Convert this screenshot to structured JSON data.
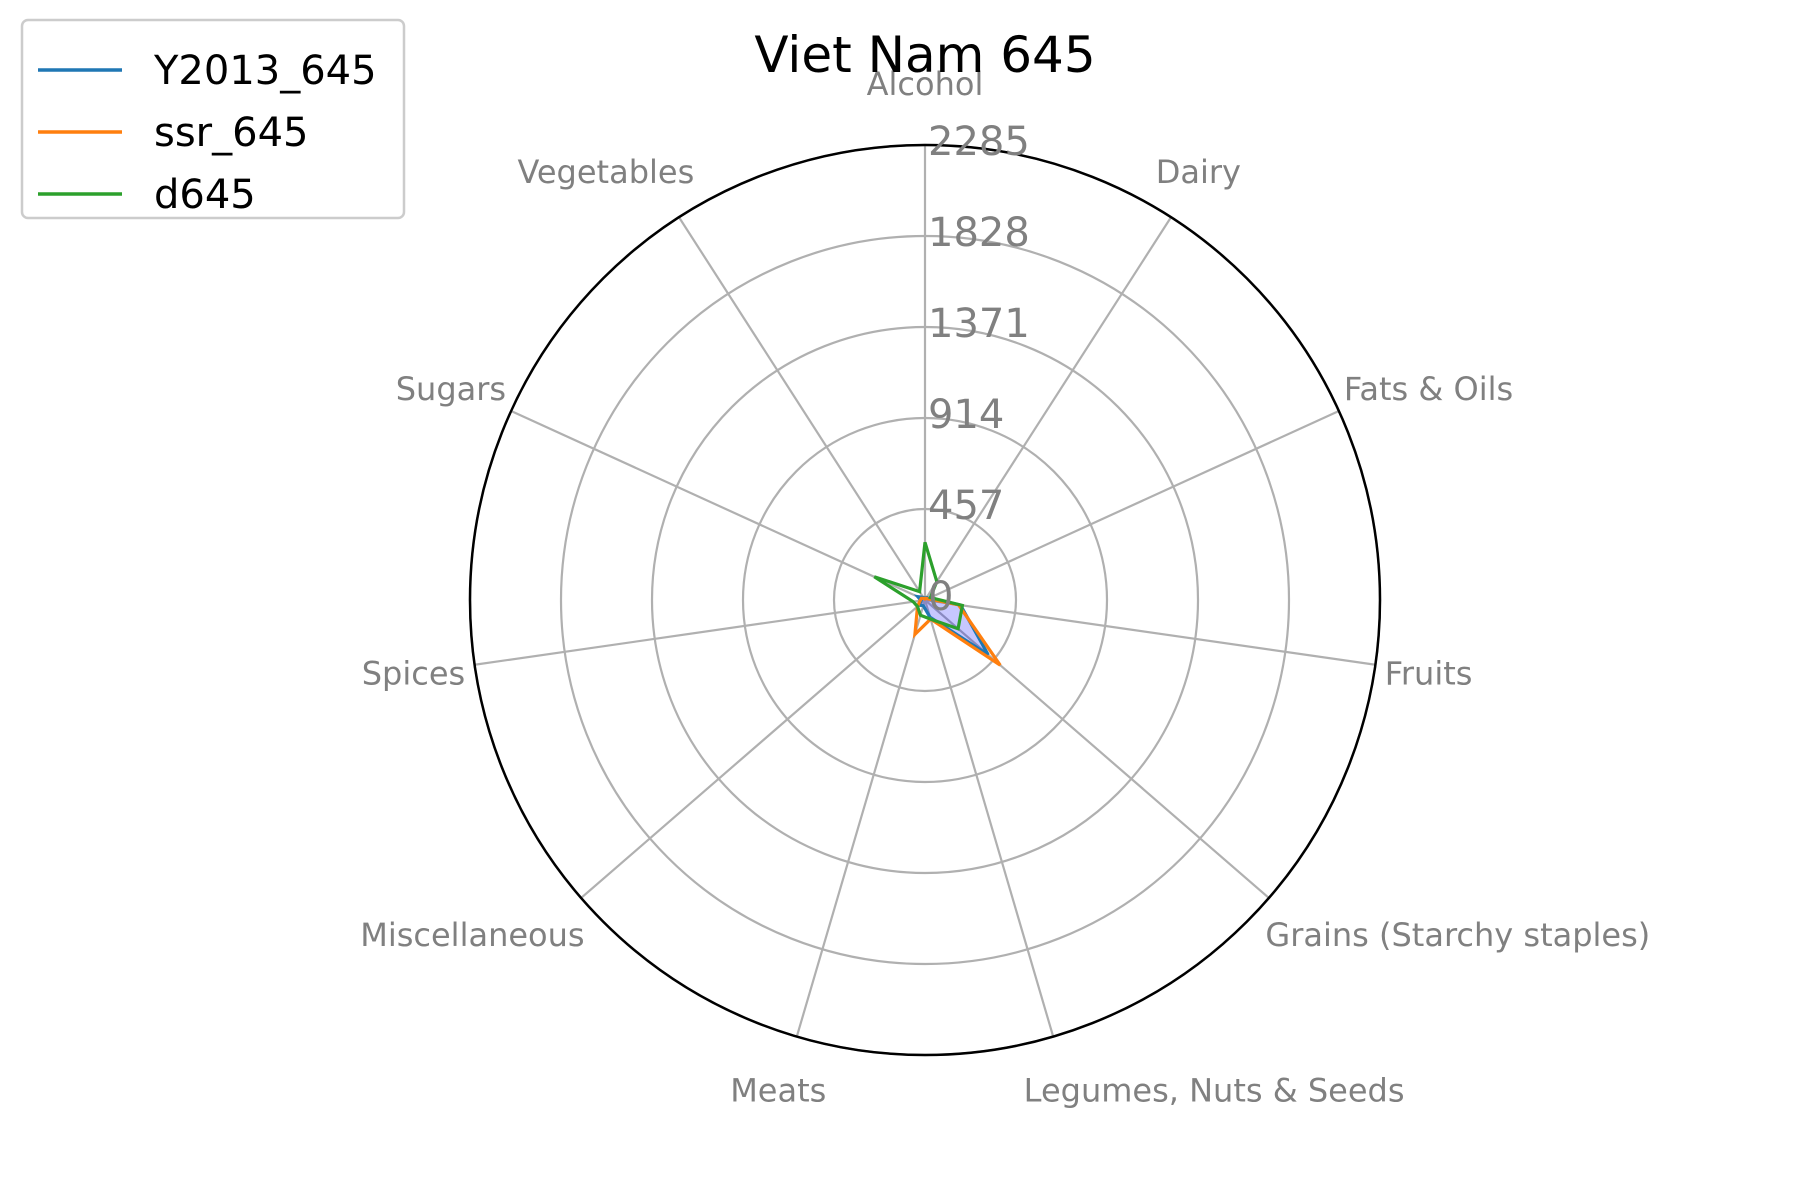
{
  "chart_data": {
    "type": "radar",
    "title": "Viet Nam 645",
    "categories": [
      "Alcohol",
      "Dairy",
      "Fats & Oils",
      "Fruits",
      "Grains (Starchy staples)",
      "Legumes, Nuts & Seeds",
      "Meats",
      "Miscellaneous",
      "Spices",
      "Sugars",
      "Vegetables"
    ],
    "rticks": [
      "0",
      "457",
      "914",
      "1371",
      "1828",
      "2285"
    ],
    "rlim": [
      0,
      2285
    ],
    "grid": true,
    "legend_position": "top-left",
    "series": [
      {
        "name": "Y2013_645",
        "color": "#1f77b4",
        "values": [
          10,
          15,
          20,
          180,
          420,
          90,
          30,
          40,
          20,
          40,
          15
        ]
      },
      {
        "name": "ssr_645",
        "color": "#ff7f0e",
        "values": [
          5,
          10,
          15,
          170,
          500,
          100,
          180,
          50,
          25,
          20,
          10
        ]
      },
      {
        "name": "d645",
        "color": "#2ca02c",
        "values": [
          290,
          110,
          30,
          190,
          220,
          100,
          80,
          50,
          60,
          280,
          50
        ]
      }
    ],
    "fill_color": "#0000ff"
  }
}
